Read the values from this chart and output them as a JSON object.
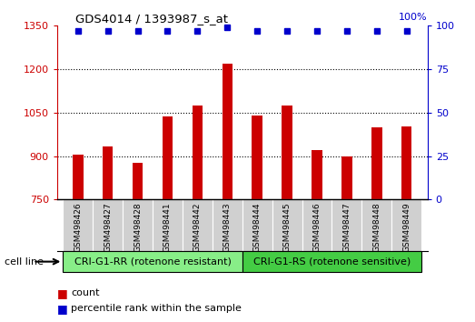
{
  "title": "GDS4014 / 1393987_s_at",
  "samples": [
    "GSM498426",
    "GSM498427",
    "GSM498428",
    "GSM498441",
    "GSM498442",
    "GSM498443",
    "GSM498444",
    "GSM498445",
    "GSM498446",
    "GSM498447",
    "GSM498448",
    "GSM498449"
  ],
  "counts": [
    905,
    935,
    878,
    1038,
    1075,
    1220,
    1040,
    1075,
    920,
    898,
    1000,
    1003
  ],
  "percentile_ranks": [
    97,
    97,
    97,
    97,
    97,
    99,
    97,
    97,
    97,
    97,
    97,
    97
  ],
  "bar_color": "#cc0000",
  "dot_color": "#0000cc",
  "ylim_left": [
    750,
    1350
  ],
  "ylim_right": [
    0,
    100
  ],
  "yticks_left": [
    750,
    900,
    1050,
    1200,
    1350
  ],
  "yticks_right": [
    0,
    25,
    50,
    75,
    100
  ],
  "groups": [
    {
      "label": "CRI-G1-RR (rotenone resistant)",
      "start": 0,
      "end": 6,
      "color": "#88ee88"
    },
    {
      "label": "CRI-G1-RS (rotenone sensitive)",
      "start": 6,
      "end": 12,
      "color": "#44cc44"
    }
  ],
  "group_label": "cell line",
  "legend": [
    {
      "color": "#cc0000",
      "label": "count"
    },
    {
      "color": "#0000cc",
      "label": "percentile rank within the sample"
    }
  ],
  "bg_color": "#ffffff",
  "plot_bg": "#ffffff",
  "grid_color": "#000000",
  "right_axis_color": "#0000cc",
  "left_axis_color": "#cc0000",
  "sample_box_color": "#d0d0d0",
  "pct_label": "100%"
}
